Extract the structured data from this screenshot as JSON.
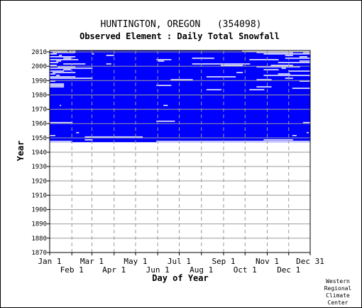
{
  "chart_data": {
    "type": "heatmap",
    "title": "HUNTINGTON, OREGON   (354098)",
    "subtitle": "Observed Element : Daily Total Snowfall",
    "xlabel": "Day of Year",
    "ylabel": "Year",
    "x_tick_labels_upper": [
      "Jan 1",
      "Mar 1",
      "May 1",
      "Jul 1",
      "Sep 1",
      "Nov 1",
      "Dec 31"
    ],
    "x_tick_labels_lower": [
      "Feb 1",
      "Apr 1",
      "Jun 1",
      "Aug 1",
      "Oct 1",
      "Dec 1"
    ],
    "y_tick_labels": [
      "2010",
      "2000",
      "1990",
      "1980",
      "1970",
      "1960",
      "1950",
      "1940",
      "1930",
      "1920",
      "1910",
      "1900",
      "1890",
      "1880",
      "1870"
    ],
    "ylim": [
      1870,
      2011
    ],
    "xlim": [
      1,
      365
    ],
    "record_start_year": 1947,
    "record_end_year": 2010,
    "grid": true,
    "data_color": "#0000ff",
    "missing_color": "#ffffff"
  },
  "credit": {
    "line1": "Western",
    "line2": "Regional",
    "line3": "Climate",
    "line4": "Center"
  }
}
